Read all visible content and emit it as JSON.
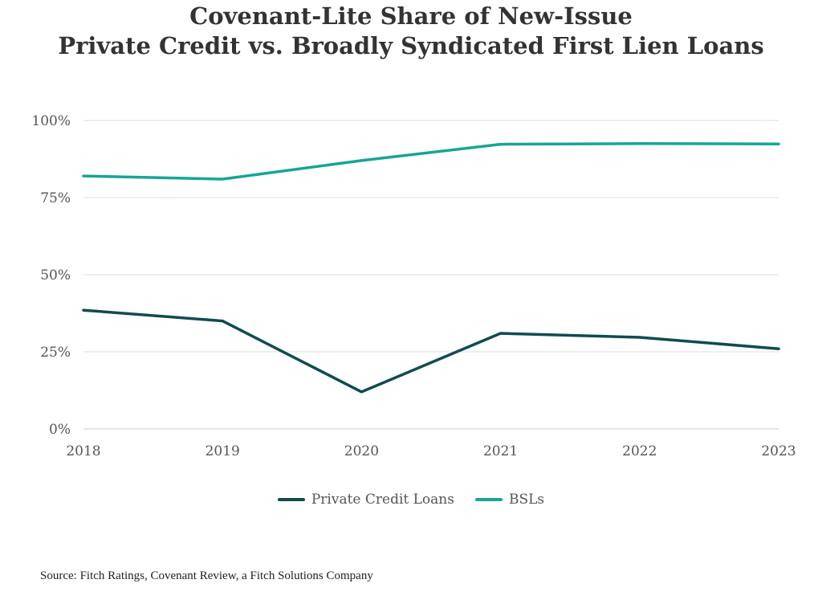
{
  "chart_data": {
    "type": "line",
    "title": [
      "Covenant-Lite Share of New-Issue",
      "Private Credit vs. Broadly Syndicated First Lien Loans"
    ],
    "x": [
      "2018",
      "2019",
      "2020",
      "2021",
      "2022",
      "2023"
    ],
    "ylim": [
      0,
      100
    ],
    "yticks": [
      0,
      25,
      50,
      75,
      100
    ],
    "ytick_labels": [
      "0%",
      "25%",
      "50%",
      "75%",
      "100%"
    ],
    "grid": true,
    "legend_position": "bottom",
    "series": [
      {
        "name": "Private Credit Loans",
        "color": "#0f4c4f",
        "values": [
          38.5,
          35,
          12,
          31,
          29.7,
          26
        ]
      },
      {
        "name": "BSLs",
        "color": "#17a596",
        "values": [
          82,
          81,
          87,
          92.3,
          92.5,
          92.4
        ]
      }
    ]
  },
  "source": "Source: Fitch Ratings, Covenant Review, a Fitch Solutions Company"
}
